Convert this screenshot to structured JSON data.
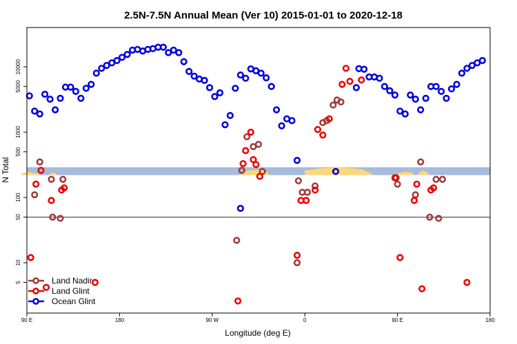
{
  "chart_data": {
    "type": "scatter",
    "title": "2.5N-7.5N Annual Mean (Ver 10)   2015-01-01 to 2020-12-18",
    "xlabel": "Longitude (deg E)",
    "ylabel": "N Total",
    "y_scale": "log",
    "xlim": [
      90,
      450
    ],
    "ylim": [
      1.7,
      40000
    ],
    "x_ticks": [
      {
        "value": 90,
        "label": "90 E"
      },
      {
        "value": 162,
        "label": "180"
      },
      {
        "value": 234,
        "label": "90 W"
      },
      {
        "value": 306,
        "label": "0"
      },
      {
        "value": 378,
        "label": "90 E"
      },
      {
        "value": 450,
        "label": "180"
      }
    ],
    "y_ticks": [
      {
        "value": 5,
        "label": "5"
      },
      {
        "value": 10,
        "label": "10"
      },
      {
        "value": 50,
        "label": "50"
      },
      {
        "value": 100,
        "label": "100"
      },
      {
        "value": 500,
        "label": "500"
      },
      {
        "value": 1000,
        "label": "1000"
      },
      {
        "value": 5000,
        "label": "5000"
      },
      {
        "value": 10000,
        "label": "10000"
      }
    ],
    "reference_line": 50,
    "land_mask_band": [
      220,
      290
    ],
    "legend_location": "bottom-left",
    "colors": {
      "land_nadir": "#a03c3c",
      "land_glint": "#ee0000",
      "ocean_glint": "#0000dd",
      "band": "#a7bcdc",
      "land_fill": "#fcd77c",
      "ref_line": "#555555",
      "axis": "#000000"
    },
    "series": [
      {
        "name": "Land Nadir",
        "key": "land_nadir",
        "points": [
          [
            96,
            110
          ],
          [
            100,
            350
          ],
          [
            110,
            50
          ],
          [
            109,
            190
          ],
          [
            116,
            48
          ],
          [
            118,
            190
          ],
          [
            253,
            22
          ],
          [
            257,
            260
          ],
          [
            261,
            850
          ],
          [
            266,
            600
          ],
          [
            270,
            650
          ],
          [
            273,
            250
          ],
          [
            301,
            180
          ],
          [
            304,
            120
          ],
          [
            308,
            120
          ],
          [
            314,
            150
          ],
          [
            320,
            1400
          ],
          [
            323,
            1500
          ],
          [
            328,
            2600
          ],
          [
            331,
            3100
          ],
          [
            334,
            2900
          ],
          [
            378,
            160
          ],
          [
            377,
            200
          ],
          [
            392,
            110
          ],
          [
            403,
            50
          ],
          [
            410,
            48
          ],
          [
            413,
            190
          ],
          [
            300,
            10
          ],
          [
            396,
            350
          ],
          [
            408,
            190
          ]
        ]
      },
      {
        "name": "Land Glint",
        "key": "land_glint",
        "points": [
          [
            93,
            12
          ],
          [
            97,
            160
          ],
          [
            101,
            260
          ],
          [
            105,
            4.2
          ],
          [
            109,
            90
          ],
          [
            117,
            130
          ],
          [
            119,
            140
          ],
          [
            143,
            5
          ],
          [
            254,
            2.6
          ],
          [
            258,
            330
          ],
          [
            260,
            520
          ],
          [
            264,
            1000
          ],
          [
            266,
            380
          ],
          [
            268,
            320
          ],
          [
            271,
            210
          ],
          [
            300,
            13
          ],
          [
            303,
            90
          ],
          [
            307,
            90
          ],
          [
            314,
            130
          ],
          [
            316,
            1100
          ],
          [
            320,
            900
          ],
          [
            325,
            1600
          ],
          [
            335,
            5400
          ],
          [
            338,
            9500
          ],
          [
            376,
            200
          ],
          [
            380,
            12
          ],
          [
            391,
            90
          ],
          [
            393,
            160
          ],
          [
            397,
            4
          ],
          [
            404,
            130
          ],
          [
            406,
            140
          ],
          [
            432,
            5
          ],
          [
            350,
            6300
          ],
          [
            341,
            6000
          ]
        ]
      },
      {
        "name": "Ocean Glint",
        "key": "ocean_glint",
        "points": [
          [
            92,
            3600
          ],
          [
            96,
            2100
          ],
          [
            100,
            1900
          ],
          [
            104,
            3800
          ],
          [
            108,
            3200
          ],
          [
            112,
            2200
          ],
          [
            116,
            3300
          ],
          [
            120,
            4900
          ],
          [
            124,
            4900
          ],
          [
            128,
            4200
          ],
          [
            132,
            3300
          ],
          [
            136,
            4700
          ],
          [
            140,
            5400
          ],
          [
            144,
            8000
          ],
          [
            148,
            9500
          ],
          [
            152,
            10500
          ],
          [
            156,
            11500
          ],
          [
            160,
            12500
          ],
          [
            164,
            14000
          ],
          [
            168,
            15500
          ],
          [
            172,
            18000
          ],
          [
            176,
            18500
          ],
          [
            180,
            17500
          ],
          [
            184,
            18500
          ],
          [
            188,
            19000
          ],
          [
            192,
            20000
          ],
          [
            196,
            20000
          ],
          [
            200,
            16500
          ],
          [
            204,
            18000
          ],
          [
            208,
            16500
          ],
          [
            212,
            12000
          ],
          [
            216,
            8500
          ],
          [
            220,
            7200
          ],
          [
            224,
            6500
          ],
          [
            228,
            6200
          ],
          [
            232,
            4800
          ],
          [
            236,
            3500
          ],
          [
            240,
            4000
          ],
          [
            244,
            1300
          ],
          [
            248,
            1800
          ],
          [
            252,
            4700
          ],
          [
            256,
            7500
          ],
          [
            260,
            6700
          ],
          [
            264,
            9300
          ],
          [
            268,
            8700
          ],
          [
            272,
            8000
          ],
          [
            276,
            6800
          ],
          [
            280,
            5000
          ],
          [
            284,
            2200
          ],
          [
            288,
            1250
          ],
          [
            292,
            1600
          ],
          [
            296,
            1500
          ],
          [
            300,
            370
          ],
          [
            346,
            4800
          ],
          [
            348,
            9400
          ],
          [
            352,
            9200
          ],
          [
            356,
            7000
          ],
          [
            360,
            7000
          ],
          [
            364,
            6700
          ],
          [
            368,
            5000
          ],
          [
            372,
            4300
          ],
          [
            376,
            3700
          ],
          [
            380,
            2100
          ],
          [
            384,
            1900
          ],
          [
            388,
            3700
          ],
          [
            392,
            3200
          ],
          [
            396,
            2200
          ],
          [
            400,
            3300
          ],
          [
            404,
            5000
          ],
          [
            408,
            5000
          ],
          [
            412,
            4200
          ],
          [
            416,
            3300
          ],
          [
            420,
            4600
          ],
          [
            424,
            5400
          ],
          [
            428,
            8000
          ],
          [
            432,
            9500
          ],
          [
            436,
            10500
          ],
          [
            440,
            11500
          ],
          [
            444,
            12500
          ],
          [
            330,
            250
          ],
          [
            256,
            68
          ]
        ]
      }
    ]
  }
}
